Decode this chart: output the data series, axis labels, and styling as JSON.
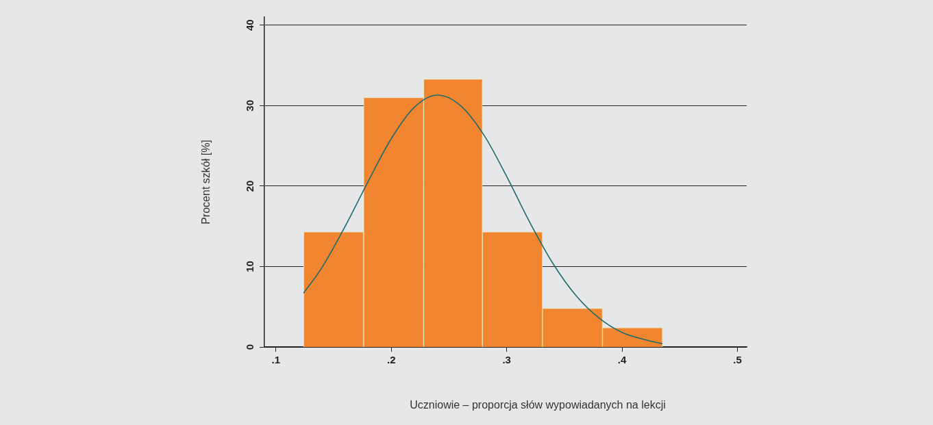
{
  "chart_data": {
    "type": "histogram",
    "xlabel": "Uczniowie – proporcja słów wypowiadanych na lekcji",
    "ylabel": "Procent szkół [%]",
    "bins": [
      0.124,
      0.176,
      0.228,
      0.279,
      0.331,
      0.383,
      0.435
    ],
    "values": [
      14.3,
      31,
      33.3,
      14.3,
      4.8,
      2.4
    ],
    "color": "#f28530",
    "series": [
      {
        "type": "line",
        "color": "#1f6b6b",
        "x": [
          0.124,
          0.14,
          0.16,
          0.18,
          0.2,
          0.22,
          0.24,
          0.26,
          0.28,
          0.3,
          0.32,
          0.34,
          0.36,
          0.38,
          0.4,
          0.42,
          0.435
        ],
        "values": [
          6.7,
          9.9,
          15,
          20.6,
          25.9,
          29.8,
          31.3,
          30,
          26.4,
          21.2,
          15.5,
          10.4,
          6.4,
          3.6,
          1.8,
          0.9,
          0.4
        ]
      }
    ],
    "xlim": [
      0.09,
      0.508
    ],
    "ylim": [
      0,
      41
    ],
    "xticks": [
      {
        "value": 0.1,
        "label": ".1"
      },
      {
        "value": 0.2,
        "label": ".2"
      },
      {
        "value": 0.3,
        "label": ".3"
      },
      {
        "value": 0.4,
        "label": ".4"
      },
      {
        "value": 0.5,
        "label": ".5"
      }
    ],
    "yticks": [
      0,
      10,
      20,
      30,
      40
    ],
    "grid": "y",
    "legend": false
  }
}
